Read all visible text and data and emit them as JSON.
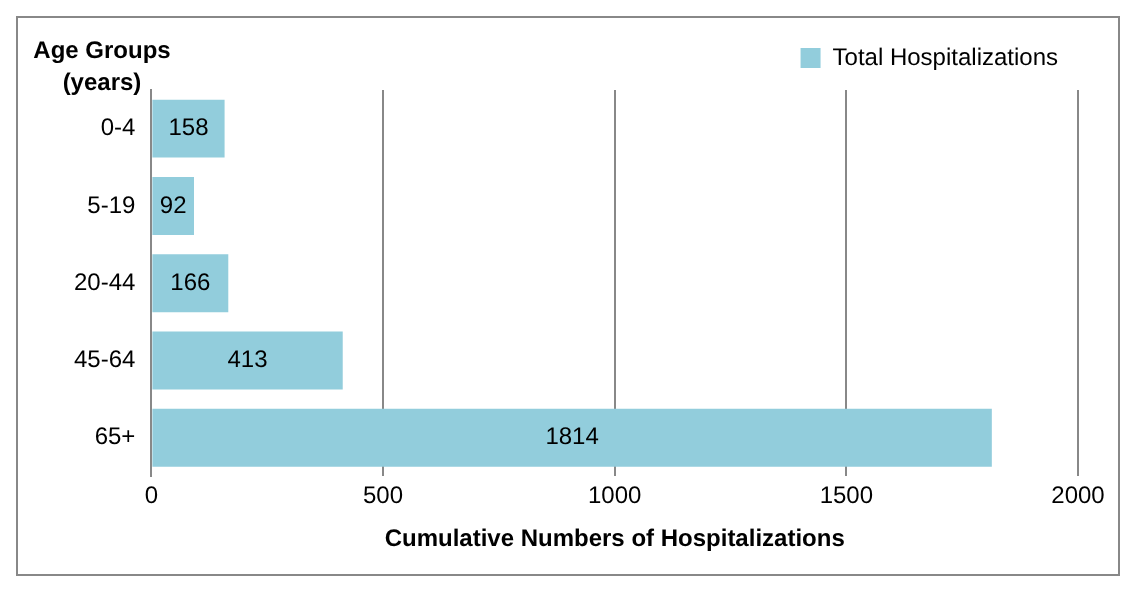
{
  "chart_data": {
    "type": "bar",
    "orientation": "horizontal",
    "ylabel": "Age Groups (years)",
    "xlabel": "Cumulative Numbers of Hospitalizations",
    "categories": [
      "0-4",
      "5-19",
      "20-44",
      "45-64",
      "65+"
    ],
    "series": [
      {
        "name": "Total Hospitalizations",
        "color": "#92cddc",
        "values": [
          158,
          92,
          166,
          413,
          1814
        ]
      }
    ],
    "xlim": [
      0,
      2000
    ],
    "xticks": [
      0,
      500,
      1000,
      1500,
      2000
    ],
    "grid": "x",
    "legend": "top right",
    "data_labels": true
  }
}
